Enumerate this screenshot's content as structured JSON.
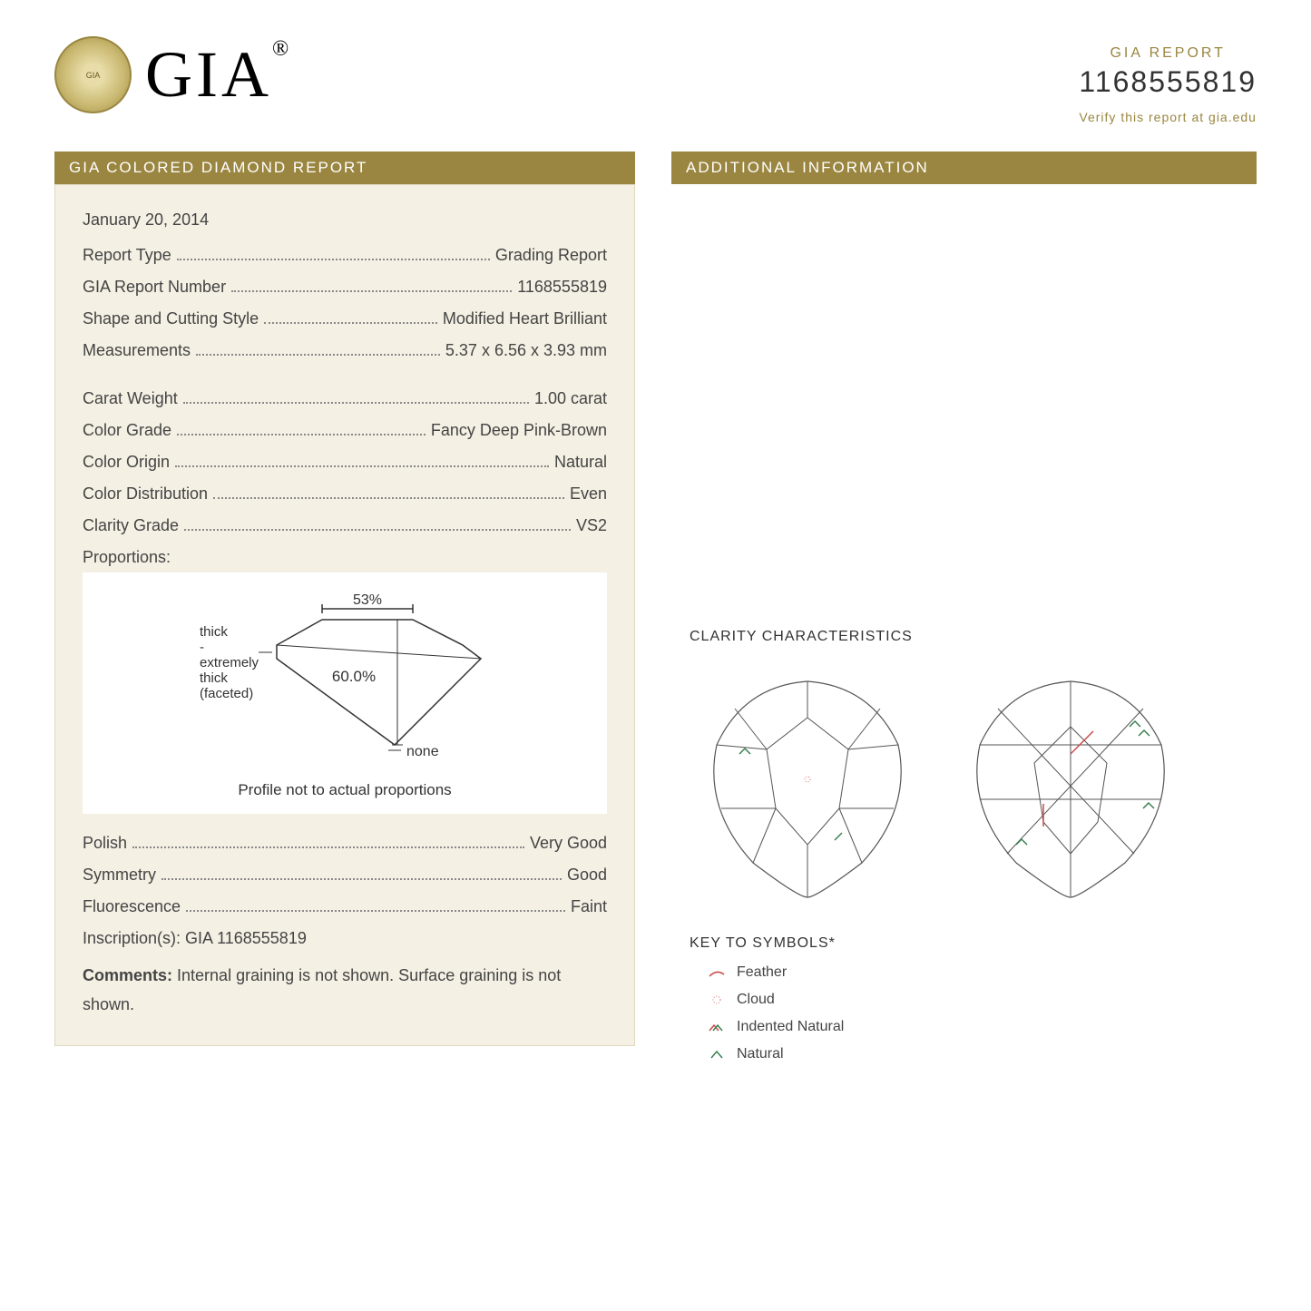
{
  "brand": "GIA",
  "reg": "®",
  "report_label": "GIA REPORT",
  "report_number": "1168555819",
  "verify_text": "Verify this report at gia.edu",
  "left_header": "GIA COLORED DIAMOND REPORT",
  "right_header": "ADDITIONAL INFORMATION",
  "date": "January 20, 2014",
  "fields_a": [
    {
      "label": "Report Type",
      "value": "Grading Report"
    },
    {
      "label": "GIA Report Number",
      "value": "1168555819"
    },
    {
      "label": "Shape and Cutting Style",
      "value": "Modified Heart Brilliant"
    },
    {
      "label": "Measurements",
      "value": "5.37 x 6.56 x 3.93 mm"
    }
  ],
  "fields_b": [
    {
      "label": "Carat Weight",
      "value": "1.00 carat"
    },
    {
      "label": "Color Grade",
      "value": "Fancy Deep Pink-Brown"
    },
    {
      "label": "Color Origin",
      "value": "Natural"
    },
    {
      "label": "Color Distribution",
      "value": "Even"
    },
    {
      "label": "Clarity Grade",
      "value": "VS2"
    }
  ],
  "proportions_label": "Proportions:",
  "diagram": {
    "table_pct": "53%",
    "depth_pct": "60.0%",
    "girdle_label": "thick\n-\nextremely\nthick\n(faceted)",
    "culet": "none",
    "caption": "Profile not to actual proportions"
  },
  "fields_c": [
    {
      "label": "Polish",
      "value": "Very Good"
    },
    {
      "label": "Symmetry",
      "value": "Good"
    },
    {
      "label": "Fluorescence",
      "value": "Faint"
    }
  ],
  "inscriptions_label": "Inscription(s):",
  "inscriptions_value": "GIA 1168555819",
  "comments_label": "Comments:",
  "comments_text": "Internal graining is not shown. Surface graining is not shown.",
  "clarity_title": "CLARITY CHARACTERISTICS",
  "key_title": "KEY TO SYMBOLS*",
  "key_items": [
    {
      "name": "Feather",
      "color": "#c94a4a",
      "type": "curve"
    },
    {
      "name": "Cloud",
      "color": "#c94a4a",
      "type": "dots"
    },
    {
      "name": "Indented Natural",
      "color": "#c94a4a",
      "type": "caret2"
    },
    {
      "name": "Natural",
      "color": "#3a8050",
      "type": "caret"
    }
  ],
  "colors": {
    "gold": "#9a8640",
    "cream": "#f5f0e4",
    "text": "#444444"
  }
}
